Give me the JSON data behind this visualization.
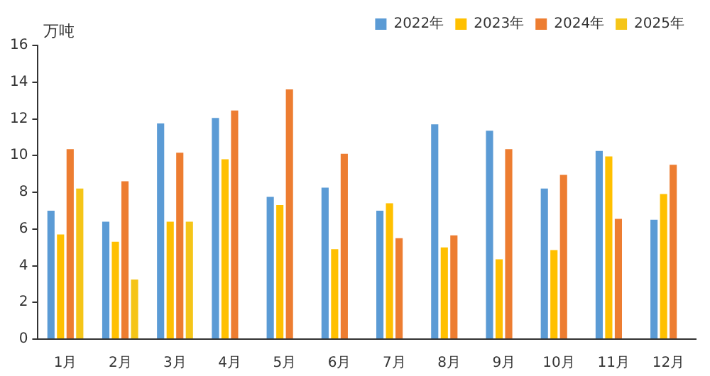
{
  "chart_data": {
    "type": "bar",
    "ylabel": "万吨",
    "categories": [
      "1月",
      "2月",
      "3月",
      "4月",
      "5月",
      "6月",
      "7月",
      "8月",
      "9月",
      "10月",
      "11月",
      "12月"
    ],
    "series": [
      {
        "name": "2022年",
        "color": "#5b9bd5",
        "values": [
          7.0,
          6.4,
          11.75,
          12.05,
          7.75,
          8.25,
          7.0,
          11.7,
          11.35,
          8.2,
          10.25,
          6.5
        ]
      },
      {
        "name": "2023年",
        "color": "#ffc000",
        "values": [
          5.7,
          5.3,
          6.4,
          9.8,
          7.3,
          4.9,
          7.4,
          5.0,
          4.35,
          4.85,
          9.95,
          7.9
        ]
      },
      {
        "name": "2024年",
        "color": "#ed7d31",
        "values": [
          10.35,
          8.6,
          10.15,
          12.45,
          13.6,
          10.1,
          5.5,
          5.65,
          10.35,
          8.95,
          6.55,
          9.5
        ]
      },
      {
        "name": "2025年",
        "color": "#f5c518",
        "values": [
          8.2,
          3.25,
          6.4,
          null,
          null,
          null,
          null,
          null,
          null,
          null,
          null,
          null
        ]
      }
    ],
    "ylim": [
      0,
      16
    ],
    "yticks": [
      0,
      2,
      4,
      6,
      8,
      10,
      12,
      14,
      16
    ],
    "grid": false,
    "legend": "top right"
  }
}
